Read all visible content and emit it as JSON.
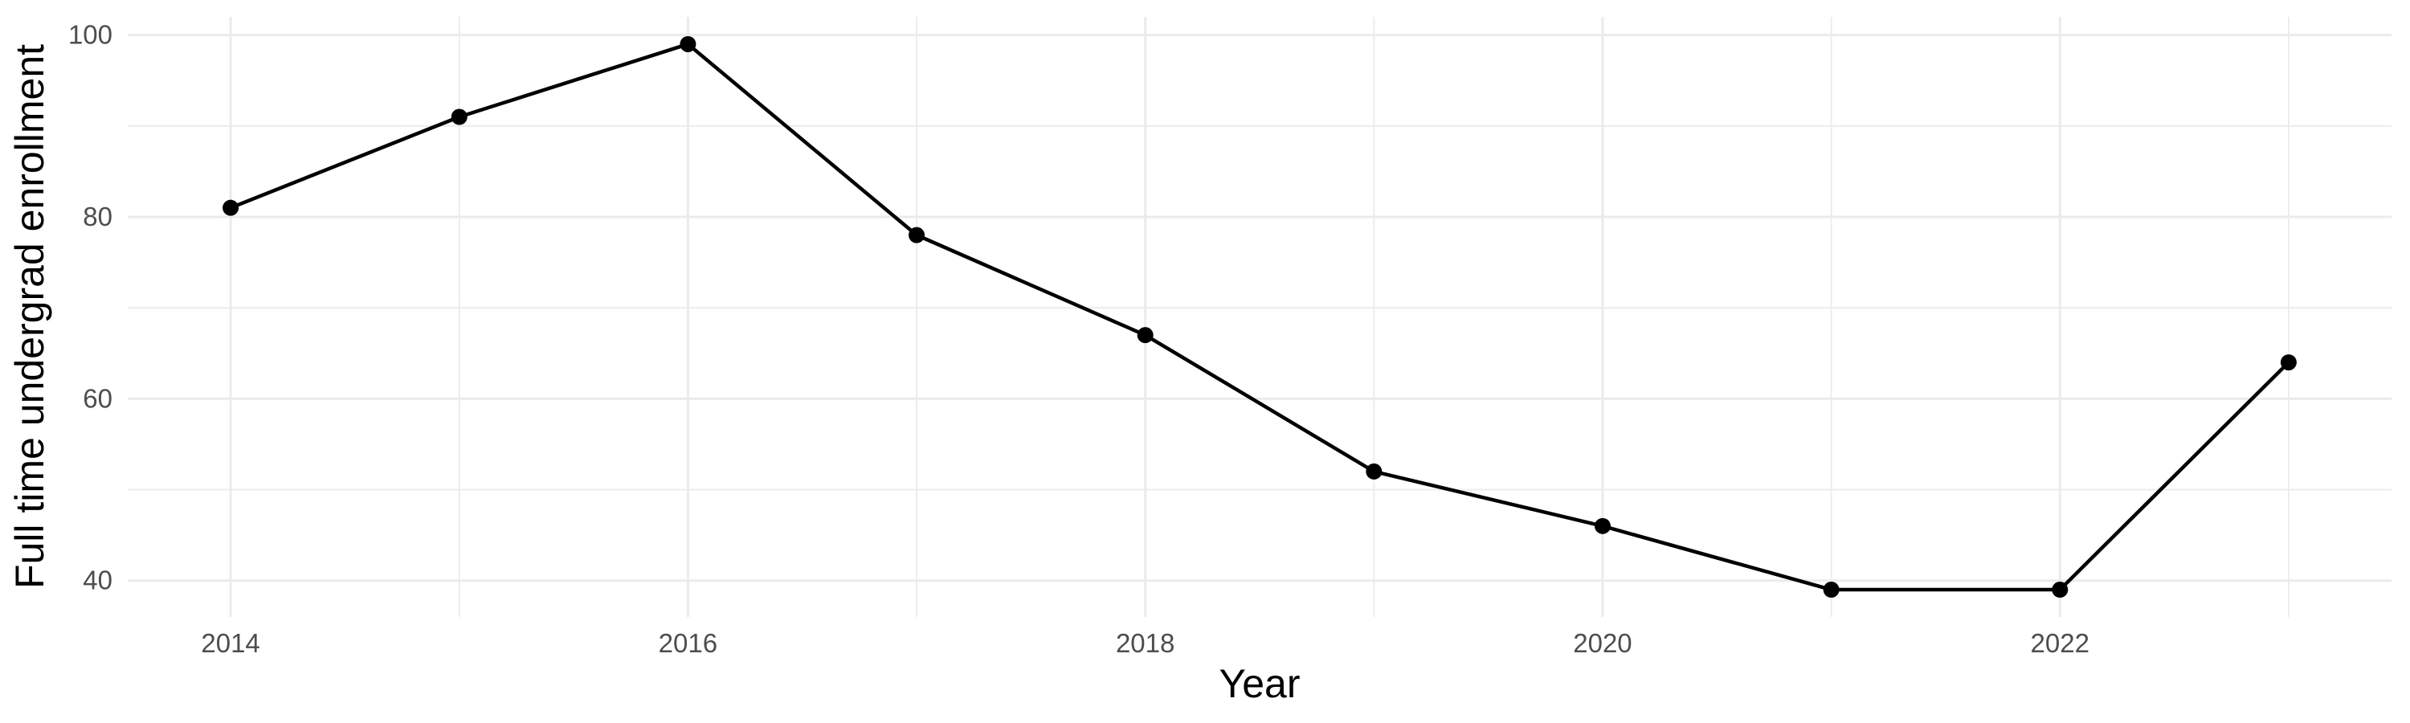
{
  "chart_data": {
    "type": "line",
    "title": "",
    "xlabel": "Year",
    "ylabel": "Full time undergrad enrollment",
    "x": [
      2014,
      2015,
      2016,
      2017,
      2018,
      2019,
      2020,
      2021,
      2022,
      2023
    ],
    "series": [
      {
        "name": "Full time undergrad enrollment",
        "values": [
          81,
          91,
          99,
          78,
          67,
          52,
          46,
          39,
          39,
          64
        ]
      }
    ],
    "x_major_ticks": [
      2014,
      2016,
      2018,
      2020,
      2022
    ],
    "x_tick_labels": [
      "2014",
      "2016",
      "2018",
      "2020",
      "2022"
    ],
    "x_minor_ticks": [
      2015,
      2017,
      2019,
      2021,
      2023
    ],
    "y_major_ticks": [
      40,
      60,
      80,
      100
    ],
    "y_tick_labels": [
      "40",
      "60",
      "80",
      "100"
    ],
    "y_minor_ticks": [
      50,
      70,
      90
    ],
    "xlim": [
      2013.55,
      2023.45
    ],
    "ylim": [
      36,
      102
    ],
    "grid": "major and minor, no axis lines, no tick marks (ggplot minimal style)",
    "legend": "none",
    "style": {
      "line_color": "#000000",
      "point_color": "#000000",
      "grid_color": "#EBEBEB",
      "tick_label_color": "#4D4D4D",
      "axis_title_color": "#000000",
      "background_color": "#FFFFFF"
    }
  }
}
